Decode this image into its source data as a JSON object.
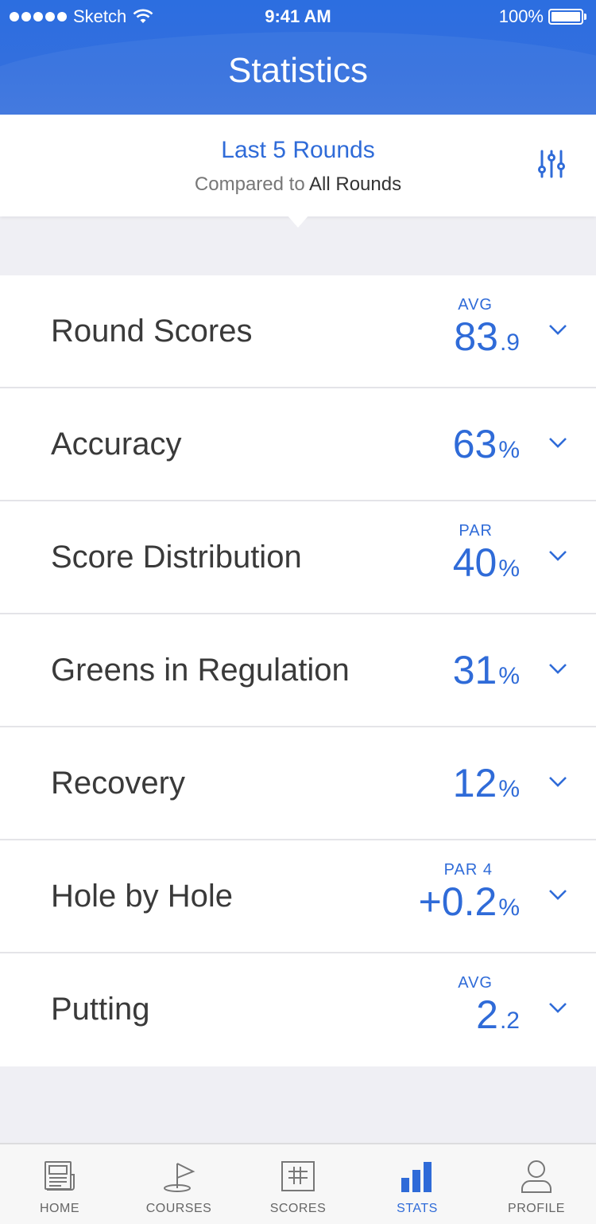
{
  "status_bar": {
    "carrier": "Sketch",
    "time": "9:41 AM",
    "battery": "100%"
  },
  "header": {
    "title": "Statistics"
  },
  "filter": {
    "title": "Last 5 Rounds",
    "compare_prefix": "Compared to",
    "compare_value": "All Rounds",
    "icon": "sliders-icon"
  },
  "stats": [
    {
      "label": "Round Scores",
      "caption": "AVG",
      "value": "83",
      "suffix": ".9"
    },
    {
      "label": "Accuracy",
      "caption": "",
      "value": "63",
      "suffix": "%"
    },
    {
      "label": "Score Distribution",
      "caption": "PAR",
      "value": "40",
      "suffix": "%"
    },
    {
      "label": "Greens in Regulation",
      "caption": "",
      "value": "31",
      "suffix": "%"
    },
    {
      "label": "Recovery",
      "caption": "",
      "value": "12",
      "suffix": "%"
    },
    {
      "label": "Hole by Hole",
      "caption": "PAR 4",
      "value": "+0.2",
      "suffix": "%"
    },
    {
      "label": "Putting",
      "caption": "AVG",
      "value": "2",
      "suffix": ".2"
    }
  ],
  "tabs": [
    {
      "label": "HOME",
      "icon": "newspaper-icon",
      "active": false
    },
    {
      "label": "COURSES",
      "icon": "flag-icon",
      "active": false
    },
    {
      "label": "SCORES",
      "icon": "scorecard-icon",
      "active": false
    },
    {
      "label": "STATS",
      "icon": "bar-chart-icon",
      "active": true
    },
    {
      "label": "PROFILE",
      "icon": "person-icon",
      "active": false
    }
  ],
  "colors": {
    "accent": "#2f6bd8",
    "header": "#336fde",
    "background": "#efeff4"
  }
}
